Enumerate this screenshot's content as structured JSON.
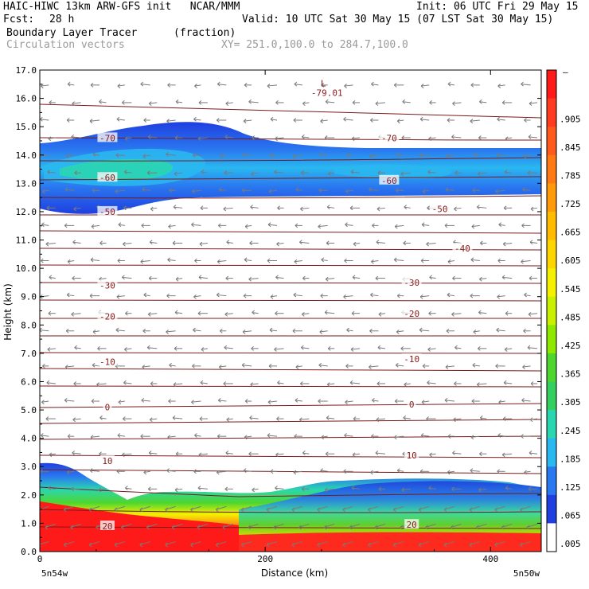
{
  "header": {
    "line1_left": "HAIC-HIWC 13km ARW-GFS init   NCAR/MMM",
    "line1_right": "Init: 06 UTC Fri 29 May 15",
    "fcst_label": "Fcst:",
    "fcst_value": "28 h",
    "valid": "Valid: 10 UTC Sat 30 May 15 (07 LST Sat 30 May 15)",
    "field_name": "Boundary Layer Tracer",
    "field_units": "(fraction)",
    "vector_label": "Circulation vectors",
    "xy_range": "XY= 251.0,100.0 to 284.7,100.0"
  },
  "chart_data": {
    "type": "heatmap",
    "xlabel": "Distance (km)",
    "ylabel": "Height (km)",
    "xlim": [
      0,
      445
    ],
    "ylim": [
      0,
      17
    ],
    "x_ticks": [
      0,
      200,
      400
    ],
    "y_ticks": [
      "0.0",
      "1.0",
      "2.0",
      "3.0",
      "4.0",
      "5.0",
      "6.0",
      "7.0",
      "8.0",
      "9.0",
      "10.0",
      "11.0",
      "12.0",
      "13.0",
      "14.0",
      "15.0",
      "16.0",
      "17.0"
    ],
    "x_endpoint_left": "5n54w",
    "x_endpoint_right": "5n50w",
    "colorbar": {
      "top_label": "–",
      "labels": [
        ".905",
        ".845",
        ".785",
        ".725",
        ".665",
        ".605",
        ".545",
        ".485",
        ".425",
        ".365",
        ".305",
        ".245",
        ".185",
        ".125",
        ".065",
        ".005"
      ],
      "colors": [
        "#ff1a1a",
        "#ff3b22",
        "#ff5a1e",
        "#ff7a14",
        "#ff9a0a",
        "#ffbb00",
        "#ffd500",
        "#f5f000",
        "#c8f000",
        "#8ee800",
        "#4fd62e",
        "#33d060",
        "#2ad6b0",
        "#2ab8f0",
        "#2a78f0",
        "#1f3fe0",
        "#ffffff"
      ]
    },
    "field_regions": [
      {
        "name": "lower-tracer",
        "max_fraction": 0.95,
        "height_top_km": 3.1
      },
      {
        "name": "upper-tracer-layer",
        "max_fraction": 0.35,
        "height_range_km": [
          11.9,
          15.2
        ]
      }
    ],
    "temperature_contours": [
      {
        "value": "20",
        "labels": [
          {
            "x": 60,
            "y": 0.9
          },
          {
            "x": 330,
            "y": 0.95
          }
        ]
      },
      {
        "value": "10",
        "labels": [
          {
            "x": 60,
            "y": 3.2
          },
          {
            "x": 330,
            "y": 3.4
          }
        ]
      },
      {
        "value": "0",
        "labels": [
          {
            "x": 60,
            "y": 5.1
          },
          {
            "x": 330,
            "y": 5.2
          }
        ]
      },
      {
        "value": "-10",
        "labels": [
          {
            "x": 60,
            "y": 6.7
          },
          {
            "x": 330,
            "y": 6.8
          }
        ]
      },
      {
        "value": "-20",
        "labels": [
          {
            "x": 60,
            "y": 8.3
          },
          {
            "x": 330,
            "y": 8.4
          }
        ]
      },
      {
        "value": "-30",
        "labels": [
          {
            "x": 60,
            "y": 9.4
          },
          {
            "x": 330,
            "y": 9.5
          }
        ]
      },
      {
        "value": "-40",
        "labels": [
          {
            "x": 375,
            "y": 10.7
          }
        ]
      },
      {
        "value": "-50",
        "labels": [
          {
            "x": 60,
            "y": 12.0
          },
          {
            "x": 355,
            "y": 12.1
          }
        ]
      },
      {
        "value": "-60",
        "labels": [
          {
            "x": 60,
            "y": 13.2
          },
          {
            "x": 310,
            "y": 13.1
          }
        ]
      },
      {
        "value": "-70",
        "labels": [
          {
            "x": 60,
            "y": 14.6
          },
          {
            "x": 310,
            "y": 14.6
          }
        ]
      }
    ],
    "minimum_marker": {
      "symbol": "L",
      "value": "-79.01",
      "x": 245,
      "y": 16.2
    }
  }
}
